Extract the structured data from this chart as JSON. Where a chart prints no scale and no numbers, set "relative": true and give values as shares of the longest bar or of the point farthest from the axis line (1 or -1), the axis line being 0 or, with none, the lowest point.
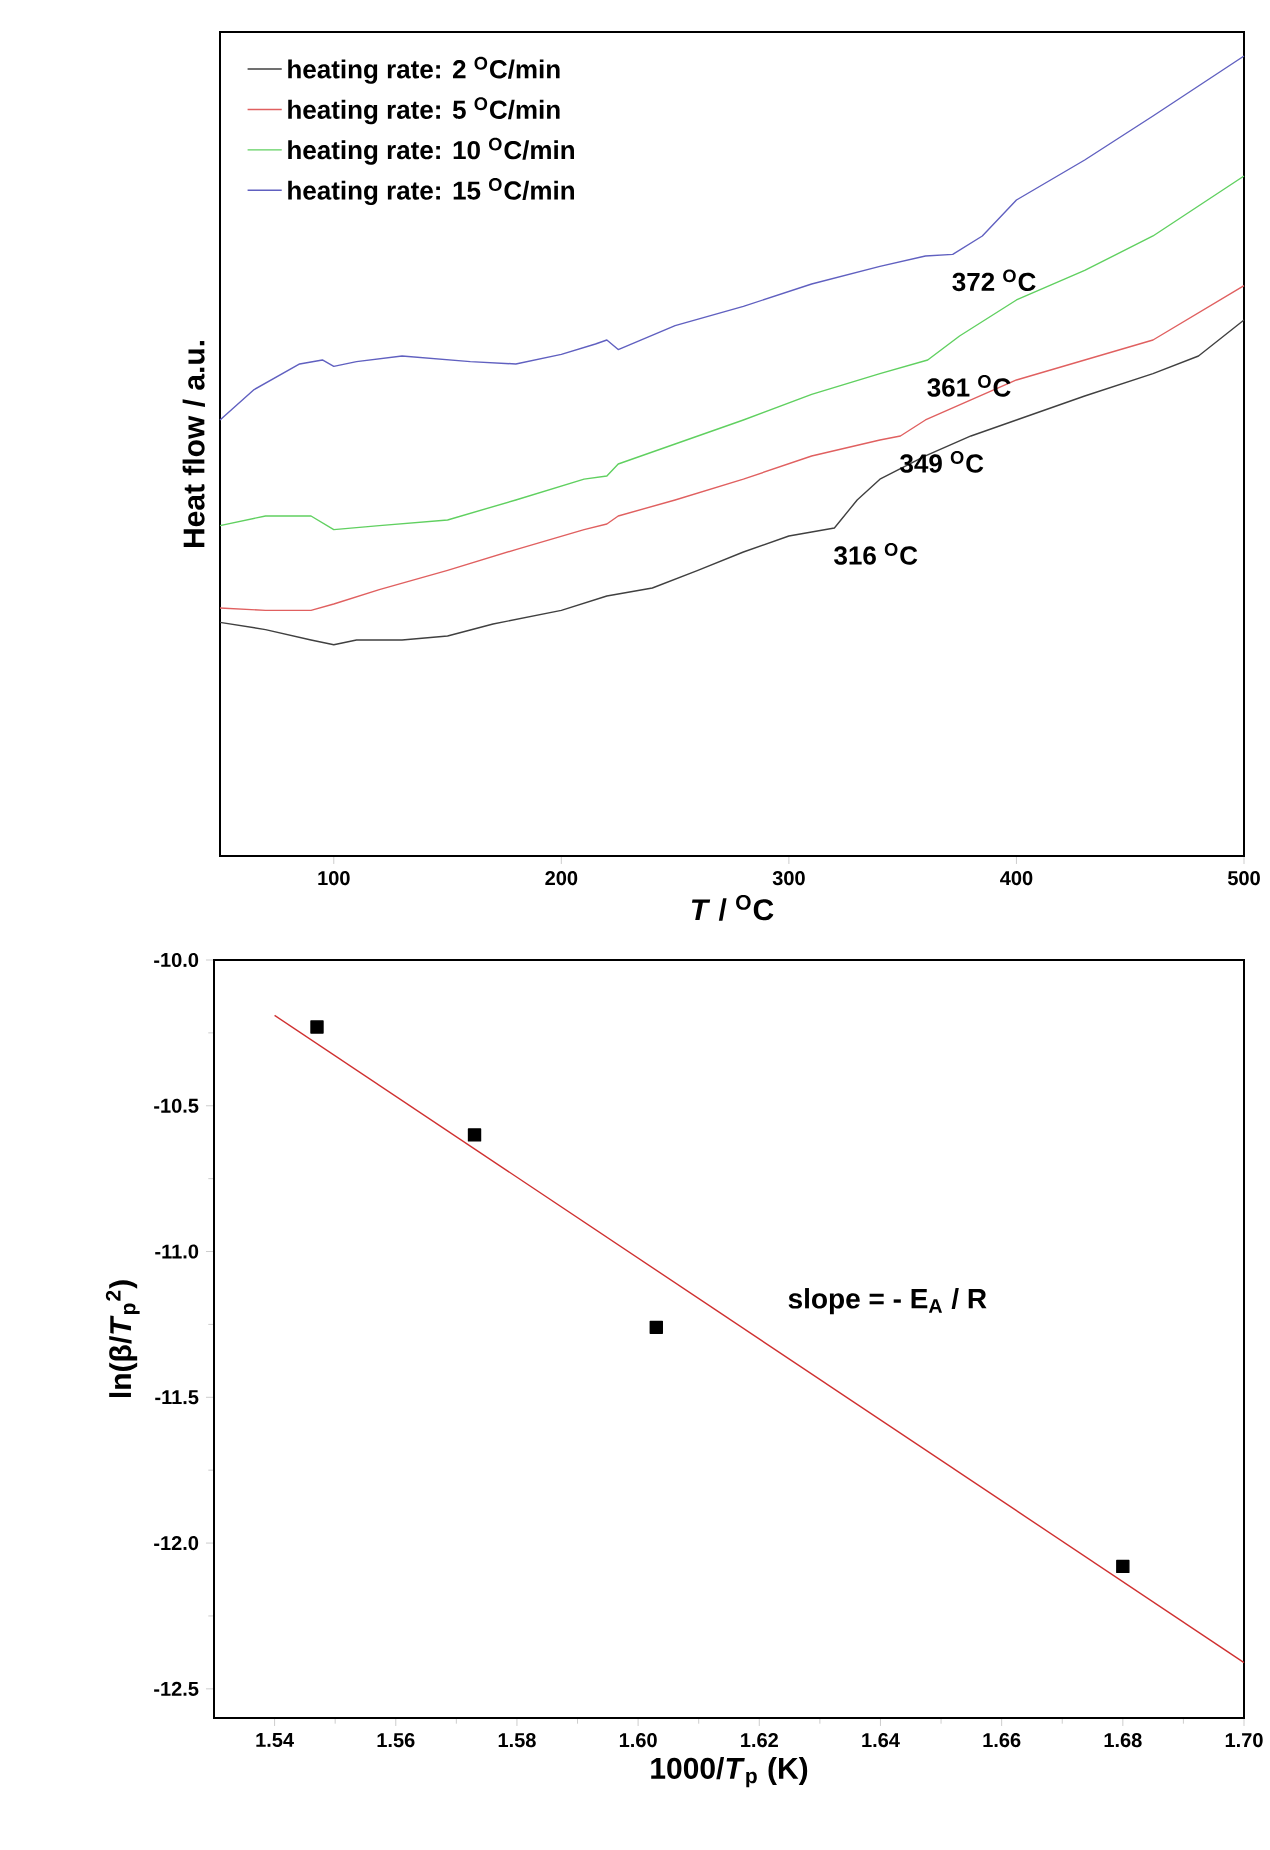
{
  "chart_data": [
    {
      "type": "line",
      "xlabel": "*T* / $^{O}$C",
      "ylabel": "Heat flow / a.u.",
      "relative": true,
      "xlim": [
        50,
        500
      ],
      "xticks": [
        100,
        200,
        300,
        400,
        500
      ],
      "tick_labels": "x",
      "legend": "top left",
      "marker": "none",
      "line_style": "solid",
      "annotations": [
        {
          "text": "316 $^{O}$C",
          "x": 320,
          "y": 0.41
        },
        {
          "text": "349 $^{O}$C",
          "x": 349,
          "y": 0.525
        },
        {
          "text": "361 $^{O}$C",
          "x": 361,
          "y": 0.62
        },
        {
          "text": "372 $^{O}$C",
          "x": 372,
          "y": 0.752
        }
      ],
      "series": [
        {
          "name": "heating rate: 2 $^{O}$C/min",
          "color": "#404040",
          "x": [
            50,
            70,
            90,
            100,
            110,
            130,
            150,
            170,
            200,
            220,
            240,
            260,
            280,
            300,
            310,
            320,
            330,
            340,
            360,
            380,
            400,
            430,
            460,
            480,
            500
          ],
          "values": [
            0.292,
            0.283,
            0.27,
            0.264,
            0.27,
            0.27,
            0.275,
            0.29,
            0.307,
            0.325,
            0.335,
            0.357,
            0.38,
            0.4,
            0.405,
            0.41,
            0.445,
            0.471,
            0.5,
            0.525,
            0.545,
            0.575,
            0.603,
            0.625,
            0.67
          ]
        },
        {
          "name": "heating rate: 5 $^{O}$C/min",
          "color": "#e06060",
          "x": [
            50,
            70,
            90,
            100,
            120,
            150,
            180,
            210,
            220,
            225,
            250,
            280,
            310,
            340,
            349,
            360,
            380,
            400,
            430,
            460,
            500
          ],
          "values": [
            0.31,
            0.307,
            0.307,
            0.315,
            0.333,
            0.357,
            0.383,
            0.408,
            0.415,
            0.425,
            0.445,
            0.471,
            0.5,
            0.52,
            0.525,
            0.545,
            0.57,
            0.595,
            0.62,
            0.645,
            0.713
          ]
        },
        {
          "name": "heating rate: 10 $^{O}$C/min",
          "color": "#60d060",
          "x": [
            50,
            70,
            90,
            100,
            120,
            150,
            180,
            210,
            220,
            225,
            250,
            280,
            310,
            340,
            361,
            375,
            400,
            430,
            460,
            500
          ],
          "values": [
            0.413,
            0.425,
            0.425,
            0.408,
            0.413,
            0.42,
            0.445,
            0.471,
            0.475,
            0.49,
            0.515,
            0.545,
            0.577,
            0.603,
            0.62,
            0.65,
            0.695,
            0.732,
            0.775,
            0.85
          ]
        },
        {
          "name": "heating rate: 15 $^{O}$C/min",
          "color": "#6060c0",
          "x": [
            50,
            65,
            85,
            95,
            100,
            110,
            130,
            160,
            180,
            200,
            215,
            220,
            225,
            250,
            280,
            310,
            340,
            360,
            372,
            385,
            400,
            430,
            460,
            500
          ],
          "values": [
            0.545,
            0.583,
            0.615,
            0.62,
            0.612,
            0.618,
            0.625,
            0.618,
            0.615,
            0.627,
            0.64,
            0.645,
            0.633,
            0.663,
            0.687,
            0.715,
            0.737,
            0.75,
            0.752,
            0.775,
            0.82,
            0.87,
            0.925,
            1
          ]
        }
      ]
    },
    {
      "type": "scatter",
      "xlabel": "1000/*T*$_{p}$ (K)",
      "ylabel": "ln(β/*T*$_{p}$$^{2}$)",
      "xlim": [
        1.53,
        1.7
      ],
      "ylim": [
        -12.6,
        -10.0
      ],
      "xticks": [
        1.54,
        1.56,
        1.58,
        {
          "value": 1.6,
          "label": "1.60"
        },
        1.62,
        1.64,
        1.66,
        1.68,
        {
          "value": 1.7,
          "label": "1.70"
        }
      ],
      "yticks": [
        -12.5,
        {
          "value": -12,
          "label": "-12.0"
        },
        -11.5,
        {
          "value": -11,
          "label": "-11.0"
        },
        -10.5,
        {
          "value": -10,
          "label": "-10.0"
        }
      ],
      "annotations": [
        "slope = - E$_{A}$ / R"
      ],
      "series": [
        {
          "color": "#000000",
          "marker": "square",
          "x": [
            1.547,
            1.573,
            1.603,
            1.68
          ],
          "values": [
            -10.23,
            -10.6,
            -11.26,
            -12.08
          ]
        },
        {
          "type": "line",
          "color": "#d03030",
          "marker": "none",
          "x": [
            1.54,
            1.7
          ],
          "values": [
            -10.19,
            -12.41
          ]
        }
      ]
    }
  ]
}
